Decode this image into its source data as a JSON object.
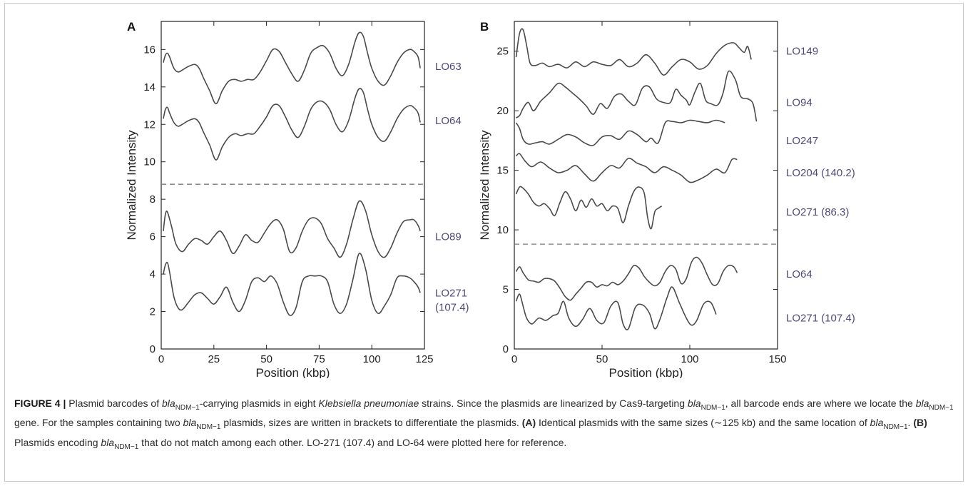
{
  "caption": {
    "figure_label": "FIGURE 4 |",
    "text": "Plasmid barcodes of bla_NDM-1-carrying plasmids in eight Klebsiella pneumoniae strains. Since the plasmids are linearized by Cas9-targeting bla_NDM-1, all barcode ends are where we locate the bla_NDM-1 gene. For the samples containing two bla_NDM-1 plasmids, sizes are written in brackets to differentiate the plasmids. (A) Identical plasmids with the same sizes (~125 kb) and the same location of bla_NDM-1. (B) Plasmids encoding bla_NDM-1 that do not match among each other. LO-271 (107.4) and LO-64 were plotted here for reference.",
    "segments": [
      {
        "t": "Plasmid barcodes of "
      },
      {
        "t": "bla",
        "i": true
      },
      {
        "t": "NDM−1",
        "sub": true
      },
      {
        "t": "-carrying plasmids in eight "
      },
      {
        "t": "Klebsiella pneumoniae",
        "i": true
      },
      {
        "t": " strains. Since the plasmids are linearized by Cas9-targeting "
      },
      {
        "t": "bla",
        "i": true
      },
      {
        "t": "NDM−1",
        "sub": true
      },
      {
        "t": ", all barcode ends are where we locate the "
      },
      {
        "t": "bla",
        "i": true
      },
      {
        "t": "NDM−1",
        "sub": true
      },
      {
        "t": " gene. For the samples containing two "
      },
      {
        "t": "bla",
        "i": true
      },
      {
        "t": "NDM−1",
        "sub": true
      },
      {
        "t": " plasmids, sizes are written in brackets to differentiate the plasmids. "
      },
      {
        "t": "(A)",
        "b": true
      },
      {
        "t": " Identical plasmids with the same sizes (∼125 kb) and the same location of "
      },
      {
        "t": "bla",
        "i": true
      },
      {
        "t": "NDM−1",
        "sub": true
      },
      {
        "t": ". "
      },
      {
        "t": "(B)",
        "b": true
      },
      {
        "t": " Plasmids encoding "
      },
      {
        "t": "bla",
        "i": true
      },
      {
        "t": "NDM−1",
        "sub": true
      },
      {
        "t": " that do not match among each other. LO-271 (107.4) and LO-64 were plotted here for reference."
      }
    ]
  },
  "colors": {
    "line": "#4a4a4a",
    "label": "#4f4a7a",
    "axis": "#222222",
    "dash": "#7a7a7a"
  },
  "chart_data": [
    {
      "type": "line",
      "panel": "A",
      "xlabel": "Position (kbp)",
      "ylabel": "Normalized Intensity",
      "xlim": [
        0,
        125
      ],
      "ylim": [
        0,
        17.5
      ],
      "xticks": [
        0,
        25,
        50,
        75,
        100,
        125
      ],
      "yticks": [
        0,
        2,
        4,
        6,
        8,
        10,
        12,
        14,
        16
      ],
      "divider_y": 8.8,
      "series": [
        {
          "name": "LO63",
          "label_y": 15.1,
          "x": [
            1,
            2,
            3,
            4,
            6,
            8,
            10,
            13,
            16,
            18,
            20,
            23,
            26,
            29,
            32,
            35,
            38,
            41,
            44,
            47,
            50,
            53,
            56,
            59,
            62,
            65,
            68,
            71,
            74,
            77,
            80,
            83,
            86,
            89,
            92,
            94,
            96,
            98,
            100,
            103,
            106,
            109,
            112,
            115,
            118,
            120,
            122,
            123
          ],
          "y": [
            15.3,
            15.7,
            15.8,
            15.6,
            15.0,
            14.8,
            14.9,
            15.1,
            15.2,
            15.0,
            14.5,
            13.8,
            13.1,
            13.8,
            14.3,
            14.4,
            14.3,
            14.4,
            14.4,
            14.8,
            15.4,
            16.0,
            15.9,
            15.3,
            14.7,
            14.3,
            14.9,
            15.8,
            16.1,
            16.2,
            15.8,
            15.0,
            14.6,
            15.2,
            16.4,
            16.9,
            16.7,
            15.8,
            15.0,
            14.3,
            14.1,
            14.6,
            15.3,
            15.8,
            16.0,
            15.9,
            15.6,
            15.0
          ]
        },
        {
          "name": "LO64",
          "label_y": 12.2,
          "x": [
            1,
            2,
            3,
            4,
            6,
            8,
            10,
            13,
            16,
            18,
            20,
            23,
            26,
            29,
            32,
            35,
            38,
            41,
            44,
            47,
            50,
            53,
            56,
            59,
            62,
            65,
            68,
            71,
            74,
            77,
            80,
            83,
            86,
            89,
            92,
            94,
            96,
            98,
            100,
            103,
            106,
            109,
            112,
            115,
            118,
            120,
            122,
            123
          ],
          "y": [
            12.3,
            12.8,
            12.9,
            12.6,
            12.1,
            11.9,
            12.0,
            12.2,
            12.3,
            12.1,
            11.6,
            10.9,
            10.1,
            10.8,
            11.3,
            11.5,
            11.4,
            11.5,
            11.5,
            11.9,
            12.4,
            13.0,
            13.0,
            12.4,
            11.7,
            11.3,
            11.9,
            12.8,
            13.2,
            13.2,
            12.8,
            12.0,
            11.6,
            12.2,
            13.4,
            13.9,
            13.7,
            12.8,
            12.0,
            11.3,
            11.1,
            11.6,
            12.3,
            12.8,
            13.0,
            12.9,
            12.6,
            12.1
          ]
        },
        {
          "name": "LO89",
          "label_y": 6.0,
          "x": [
            1,
            2,
            3,
            5,
            7,
            10,
            13,
            16,
            19,
            22,
            25,
            28,
            31,
            34,
            37,
            40,
            43,
            46,
            49,
            52,
            55,
            58,
            61,
            64,
            67,
            70,
            73,
            76,
            79,
            82,
            85,
            88,
            91,
            94,
            97,
            100,
            103,
            106,
            109,
            112,
            115,
            118,
            120,
            122,
            123
          ],
          "y": [
            6.3,
            7.2,
            7.3,
            6.5,
            5.6,
            5.2,
            5.6,
            5.9,
            5.8,
            5.6,
            6.0,
            6.3,
            5.8,
            5.1,
            5.5,
            6.1,
            5.8,
            5.7,
            6.2,
            6.7,
            6.9,
            6.4,
            5.2,
            5.4,
            6.3,
            6.9,
            7.0,
            6.7,
            5.9,
            5.4,
            4.9,
            5.6,
            6.9,
            7.9,
            7.4,
            6.1,
            5.2,
            4.9,
            5.4,
            6.2,
            6.8,
            6.9,
            6.9,
            6.6,
            6.3
          ]
        },
        {
          "name": "LO271\n(107.4)",
          "label_y": 3.0,
          "x": [
            1,
            2,
            3,
            4,
            6,
            8,
            10,
            13,
            16,
            19,
            22,
            25,
            28,
            31,
            34,
            37,
            40,
            43,
            46,
            49,
            52,
            55,
            58,
            61,
            64,
            67,
            70,
            73,
            76,
            79,
            82,
            85,
            88,
            91,
            94,
            97,
            100,
            103,
            106,
            109,
            112,
            115,
            118,
            120,
            122,
            123
          ],
          "y": [
            4.0,
            4.5,
            4.6,
            4.1,
            2.8,
            2.2,
            2.1,
            2.5,
            2.9,
            3.0,
            2.7,
            2.4,
            2.8,
            3.3,
            2.5,
            2.0,
            2.6,
            3.6,
            3.8,
            3.6,
            3.9,
            3.5,
            2.5,
            1.8,
            2.2,
            3.6,
            3.9,
            3.9,
            3.9,
            3.6,
            2.4,
            1.9,
            2.4,
            3.7,
            5.1,
            4.3,
            2.6,
            1.9,
            2.3,
            2.9,
            3.8,
            3.9,
            3.8,
            3.6,
            3.3,
            3.0
          ]
        }
      ]
    },
    {
      "type": "line",
      "panel": "B",
      "xlabel": "Position (kbp)",
      "ylabel": "Normalized Intensity",
      "xlim": [
        0,
        150
      ],
      "ylim": [
        0,
        27.5
      ],
      "xticks": [
        0,
        50,
        100,
        150
      ],
      "yticks": [
        0,
        5,
        10,
        15,
        20,
        25
      ],
      "divider_y": 8.8,
      "series": [
        {
          "name": "LO149",
          "label_y": 25.0,
          "x": [
            1,
            3,
            5,
            7,
            9,
            12,
            16,
            20,
            25,
            30,
            35,
            40,
            45,
            50,
            55,
            60,
            65,
            70,
            75,
            80,
            85,
            90,
            95,
            100,
            105,
            110,
            115,
            120,
            125,
            128,
            131,
            133,
            135
          ],
          "y": [
            24.5,
            26.5,
            26.8,
            25.5,
            24.0,
            23.8,
            24.0,
            23.7,
            23.9,
            23.6,
            24.1,
            23.7,
            24.1,
            23.9,
            23.8,
            24.3,
            23.7,
            24.0,
            24.7,
            24.0,
            23.0,
            23.7,
            24.3,
            24.1,
            23.5,
            23.8,
            24.8,
            25.5,
            25.7,
            25.3,
            24.9,
            25.4,
            24.3
          ]
        },
        {
          "name": "LO94",
          "label_y": 20.7,
          "x": [
            1,
            3,
            5,
            8,
            11,
            15,
            20,
            25,
            29,
            33,
            37,
            41,
            45,
            49,
            53,
            57,
            61,
            65,
            69,
            73,
            77,
            81,
            85,
            89,
            92,
            95,
            98,
            100,
            103,
            106,
            109,
            112,
            116,
            119,
            122,
            126,
            129,
            133,
            136,
            138
          ],
          "y": [
            19.4,
            19.6,
            20.2,
            20.7,
            20.0,
            20.8,
            21.5,
            22.3,
            22.0,
            21.5,
            21.0,
            20.4,
            19.7,
            20.6,
            20.2,
            21.2,
            21.4,
            20.8,
            20.5,
            21.9,
            22.0,
            21.0,
            20.7,
            20.7,
            21.8,
            21.3,
            20.9,
            20.5,
            21.6,
            22.3,
            20.9,
            20.6,
            20.5,
            21.5,
            23.3,
            22.6,
            21.2,
            21.0,
            20.6,
            19.1
          ]
        },
        {
          "name": "LO247",
          "label_y": 17.5,
          "x": [
            1,
            3,
            5,
            8,
            12,
            16,
            20,
            25,
            30,
            35,
            40,
            45,
            50,
            55,
            60,
            65,
            70,
            75,
            78,
            82,
            86,
            90,
            95,
            100,
            105,
            110,
            115,
            120
          ],
          "y": [
            19.0,
            18.5,
            17.6,
            17.2,
            17.3,
            17.4,
            17.2,
            17.6,
            18.0,
            17.8,
            17.3,
            17.1,
            17.8,
            17.9,
            17.6,
            18.3,
            18.0,
            17.4,
            17.7,
            17.3,
            19.0,
            19.1,
            19.0,
            19.2,
            19.1,
            19.0,
            19.2,
            19.0
          ]
        },
        {
          "name": "LO204 (140.2)",
          "label_y": 14.8,
          "x": [
            1,
            3,
            6,
            10,
            15,
            20,
            25,
            30,
            35,
            40,
            45,
            50,
            55,
            60,
            65,
            70,
            75,
            80,
            85,
            90,
            95,
            100,
            105,
            110,
            115,
            120,
            124,
            127
          ],
          "y": [
            16.2,
            16.4,
            15.8,
            15.3,
            15.7,
            15.2,
            14.8,
            15.0,
            15.4,
            14.7,
            14.1,
            14.8,
            15.4,
            15.2,
            16.0,
            15.6,
            15.3,
            14.8,
            15.3,
            15.0,
            14.6,
            14.0,
            14.2,
            14.6,
            15.1,
            14.8,
            15.9,
            15.9
          ]
        },
        {
          "name": "LO271 (86.3)",
          "label_y": 11.5,
          "x": [
            1,
            3,
            5,
            8,
            11,
            14,
            17,
            20,
            23,
            26,
            29,
            32,
            35,
            38,
            41,
            44,
            47,
            50,
            53,
            56,
            59,
            62,
            65,
            68,
            71,
            74,
            76,
            78,
            80,
            82,
            84
          ],
          "y": [
            13.0,
            13.6,
            13.5,
            13.0,
            12.3,
            12.0,
            12.2,
            11.8,
            11.2,
            12.3,
            13.2,
            12.6,
            11.6,
            12.5,
            11.9,
            12.6,
            12.0,
            12.2,
            11.6,
            12.0,
            11.8,
            10.6,
            12.0,
            13.2,
            13.6,
            13.1,
            11.0,
            10.1,
            11.5,
            11.8,
            12.0
          ]
        },
        {
          "name": "LO64",
          "label_y": 6.3,
          "x": [
            1,
            3,
            5,
            8,
            11,
            14,
            17,
            20,
            23,
            26,
            29,
            32,
            35,
            38,
            41,
            44,
            47,
            50,
            53,
            56,
            59,
            62,
            65,
            68,
            71,
            74,
            77,
            80,
            83,
            86,
            89,
            92,
            95,
            98,
            101,
            104,
            107,
            110,
            113,
            116,
            119,
            122,
            125,
            127
          ],
          "y": [
            6.5,
            6.9,
            6.4,
            5.8,
            5.7,
            5.6,
            5.9,
            5.9,
            5.7,
            5.1,
            4.4,
            4.1,
            4.6,
            5.1,
            5.6,
            5.6,
            5.2,
            5.4,
            5.3,
            5.6,
            5.4,
            5.7,
            6.3,
            7.0,
            6.8,
            6.1,
            5.6,
            5.3,
            5.6,
            6.5,
            7.0,
            6.7,
            5.5,
            5.9,
            7.3,
            7.7,
            7.2,
            6.2,
            5.4,
            5.5,
            6.5,
            7.0,
            6.9,
            6.4
          ]
        },
        {
          "name": "LO271 (107.4)",
          "label_y": 2.6,
          "x": [
            1,
            3,
            5,
            7,
            10,
            14,
            18,
            22,
            25,
            28,
            31,
            35,
            39,
            43,
            47,
            51,
            55,
            59,
            62,
            65,
            69,
            73,
            77,
            80,
            83,
            87,
            90,
            94,
            98,
            101,
            104,
            108,
            112,
            115
          ],
          "y": [
            4.0,
            4.6,
            3.6,
            2.6,
            2.1,
            2.6,
            2.4,
            2.8,
            3.0,
            4.0,
            2.6,
            1.9,
            2.5,
            3.4,
            2.4,
            2.2,
            3.6,
            3.9,
            2.1,
            1.7,
            3.5,
            3.7,
            3.0,
            1.7,
            2.5,
            4.3,
            5.2,
            3.9,
            2.6,
            2.0,
            2.4,
            3.8,
            3.9,
            2.9
          ]
        }
      ]
    }
  ]
}
